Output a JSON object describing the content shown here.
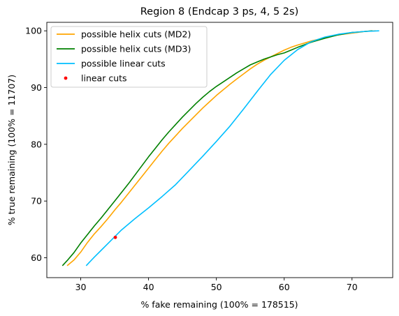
{
  "chart_data": {
    "type": "line",
    "title": "Region 8 (Endcap 3 ps, 4, 5 2s)",
    "xlabel": "% fake remaining (100% = 178515)",
    "ylabel": "% true remaining (100% = 11707)",
    "xlim": [
      25,
      76
    ],
    "ylim": [
      56.5,
      101.5
    ],
    "xticks": [
      30,
      40,
      50,
      60,
      70
    ],
    "yticks": [
      60,
      70,
      80,
      90,
      100
    ],
    "grid": false,
    "legend_position": "top-left",
    "series": [
      {
        "name": "possible helix cuts (MD2)",
        "type": "line",
        "color": "#ffa500",
        "x": [
          28.0,
          29.0,
          30.0,
          31.0,
          32.0,
          33.0,
          34.0,
          35.0,
          36.0,
          37.0,
          38.0,
          39.0,
          40.0,
          41.0,
          42.0,
          43.0,
          44.0,
          45.0,
          46.0,
          47.0,
          48.0,
          49.0,
          50.0,
          51.0,
          52.0,
          53.0,
          54.0,
          55.0,
          56.0,
          57.0,
          58.0,
          59.0,
          60.0,
          61.0,
          62.0,
          64.0,
          66.0,
          68.0,
          70.0,
          72.0,
          73.5
        ],
        "y": [
          58.6,
          59.6,
          61.0,
          62.7,
          64.2,
          65.5,
          66.9,
          68.4,
          69.8,
          71.3,
          72.8,
          74.3,
          75.8,
          77.3,
          78.8,
          80.2,
          81.5,
          82.8,
          84.0,
          85.2,
          86.4,
          87.5,
          88.6,
          89.6,
          90.6,
          91.5,
          92.4,
          93.3,
          94.1,
          94.8,
          95.4,
          96.0,
          96.6,
          97.1,
          97.5,
          98.2,
          98.8,
          99.3,
          99.6,
          99.9,
          100.0
        ]
      },
      {
        "name": "possible helix cuts (MD3)",
        "type": "line",
        "color": "#008000",
        "x": [
          27.3,
          28.0,
          29.0,
          30.0,
          31.0,
          32.0,
          33.0,
          34.0,
          35.0,
          36.0,
          37.0,
          38.0,
          39.0,
          40.0,
          41.0,
          42.0,
          43.0,
          44.0,
          45.0,
          46.0,
          47.0,
          48.0,
          49.0,
          50.0,
          51.0,
          52.0,
          53.0,
          54.0,
          55.0,
          56.0,
          57.0,
          58.0,
          59.0,
          60.0,
          61.0,
          62.0,
          64.0,
          66.0,
          68.0,
          70.0,
          72.0,
          73.0
        ],
        "y": [
          58.6,
          59.5,
          60.9,
          62.6,
          64.1,
          65.6,
          67.0,
          68.5,
          70.0,
          71.5,
          73.0,
          74.6,
          76.2,
          77.8,
          79.3,
          80.8,
          82.2,
          83.5,
          84.8,
          86.0,
          87.2,
          88.3,
          89.3,
          90.2,
          91.0,
          91.8,
          92.6,
          93.3,
          94.0,
          94.5,
          95.0,
          95.4,
          95.8,
          96.1,
          96.6,
          97.1,
          98.0,
          98.7,
          99.3,
          99.7,
          99.9,
          100.0
        ]
      },
      {
        "name": "possible linear cuts",
        "type": "line",
        "color": "#00bfff",
        "x": [
          30.8,
          32.0,
          33.0,
          34.0,
          35.0,
          36.0,
          38.0,
          40.0,
          42.0,
          44.0,
          46.0,
          48.0,
          50.0,
          52.0,
          54.0,
          56.0,
          58.0,
          60.0,
          62.0,
          64.0,
          66.0,
          68.0,
          70.0,
          72.0,
          74.0
        ],
        "y": [
          58.6,
          60.1,
          61.3,
          62.5,
          63.7,
          64.9,
          66.9,
          68.8,
          70.8,
          72.9,
          75.4,
          77.9,
          80.5,
          83.2,
          86.2,
          89.3,
          92.3,
          94.8,
          96.7,
          98.1,
          98.9,
          99.4,
          99.7,
          99.9,
          100.0
        ]
      },
      {
        "name": "linear cuts",
        "type": "scatter",
        "color": "#ff0000",
        "x": [
          35.1
        ],
        "y": [
          63.6
        ]
      }
    ]
  }
}
